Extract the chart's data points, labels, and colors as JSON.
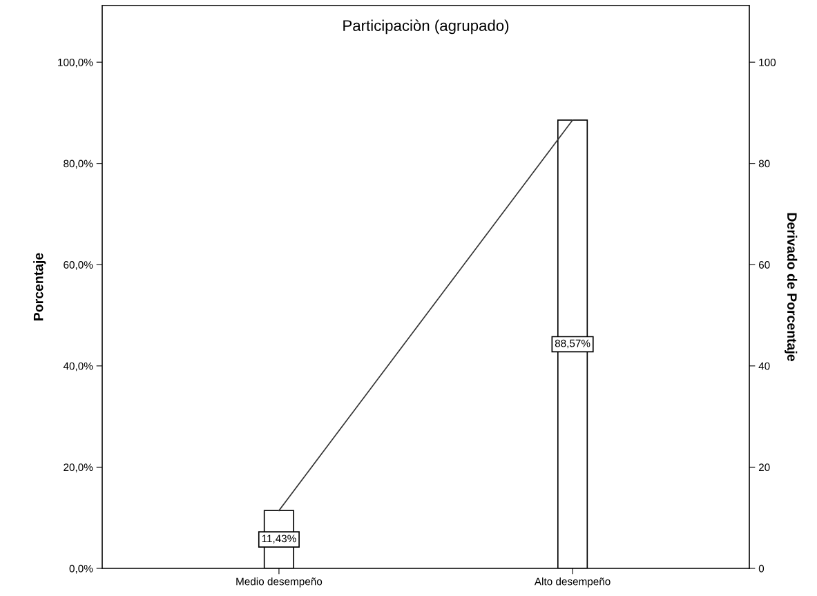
{
  "chart_data": {
    "type": "bar",
    "title": "Participaciòn (agrupado)",
    "ylabel": "Porcentaje",
    "y2label": "Derivado de Porcentaje",
    "categories": [
      "Medio desempeño",
      "Alto desempeño"
    ],
    "series": [
      {
        "color": "#ffffff",
        "values": [
          11.43,
          88.57
        ],
        "value_labels": [
          "11,43%",
          "88,57%"
        ]
      },
      {
        "type": "line",
        "color": "#333333",
        "values": [
          11.43,
          88.57
        ]
      }
    ],
    "ylim": [
      0,
      111.2
    ],
    "yticks": [
      {
        "value": 0,
        "label": "0,0%"
      },
      {
        "value": 20,
        "label": "20,0%"
      },
      {
        "value": 40,
        "label": "40,0%"
      },
      {
        "value": 60,
        "label": "60,0%"
      },
      {
        "value": 80,
        "label": "80,0%"
      },
      {
        "value": 100,
        "label": "100,0%"
      }
    ],
    "y2lim": [
      0,
      111.2
    ],
    "y2ticks": [
      0,
      20,
      40,
      60,
      80,
      100
    ],
    "grid": false,
    "marker": "none",
    "line_style": "solid"
  }
}
